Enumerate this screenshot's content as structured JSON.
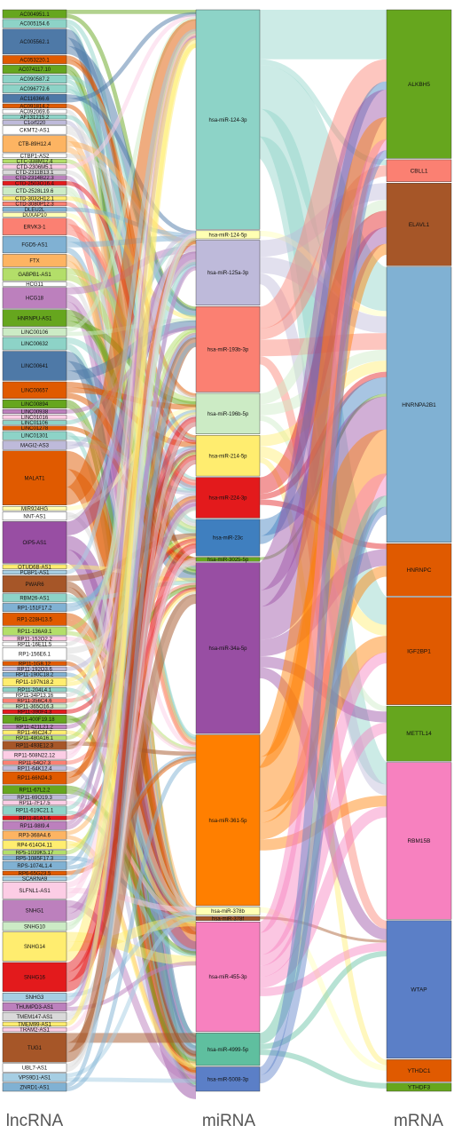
{
  "column_titles": {
    "lncrna": "lncRNA",
    "mirna": "miRNA",
    "mrna": "mRNA"
  },
  "lncrna_nodes": [
    {
      "label": "AC004951.1",
      "weight": 1,
      "color": "#66a61e"
    },
    {
      "label": "AC005154.6",
      "weight": 1,
      "color": "#8dd3c7"
    },
    {
      "label": "AC005562.1",
      "weight": 3,
      "color": "#4e79a7"
    },
    {
      "label": "AC053220.1",
      "weight": 1,
      "color": "#e05a00"
    },
    {
      "label": "AC074117.10",
      "weight": 1,
      "color": "#66a61e"
    },
    {
      "label": "AC090587.2",
      "weight": 1,
      "color": "#8dd3c7"
    },
    {
      "label": "AC096772.6",
      "weight": 1,
      "color": "#8dd3c7"
    },
    {
      "label": "AC116366.6",
      "weight": 1,
      "color": "#4e79a7"
    },
    {
      "label": "AC091814.2",
      "weight": 0.5,
      "color": "#e05a00"
    },
    {
      "label": "AC092069.6",
      "weight": 0.5,
      "color": "#ffffff"
    },
    {
      "label": "AF131215.2",
      "weight": 0.5,
      "color": "#8dd3c7"
    },
    {
      "label": "C1orf220",
      "weight": 0.5,
      "color": "#bebada"
    },
    {
      "label": "CKMT2-AS1",
      "weight": 1,
      "color": "#ffffff"
    },
    {
      "label": "CTB-89H12.4",
      "weight": 2,
      "color": "#fdb462"
    },
    {
      "label": "CTBP1-AS2",
      "weight": 0.5,
      "color": "#ffffff"
    },
    {
      "label": "CTC-338M12.4",
      "weight": 0.5,
      "color": "#b3de69"
    },
    {
      "label": "CTD-2306M5.1",
      "weight": 0.5,
      "color": "#fccde5"
    },
    {
      "label": "CTD-2311B13.1",
      "weight": 0.5,
      "color": "#d9d9d9"
    },
    {
      "label": "CTD-2314B22.3",
      "weight": 0.5,
      "color": "#bc80bd"
    },
    {
      "label": "CTD-2503O16.4",
      "weight": 0.5,
      "color": "#e31a1c"
    },
    {
      "label": "CTD-2528L19.6",
      "weight": 1,
      "color": "#ccebc5"
    },
    {
      "label": "CTD-3032H12.1",
      "weight": 0.5,
      "color": "#ffed6f"
    },
    {
      "label": "CTD-3080P12.3",
      "weight": 0.5,
      "color": "#fb8072"
    },
    {
      "label": "DLEU2L",
      "weight": 0.5,
      "color": "#80b1d3"
    },
    {
      "label": "DUXAP10",
      "weight": 0.5,
      "color": "#ffffb3"
    },
    {
      "label": "ERVK3-1",
      "weight": 2,
      "color": "#fb8072"
    },
    {
      "label": "FGD5-AS1",
      "weight": 2,
      "color": "#80b1d3"
    },
    {
      "label": "FTX",
      "weight": 1.5,
      "color": "#fdb462"
    },
    {
      "label": "GABPB1-AS1",
      "weight": 1.5,
      "color": "#b3de69"
    },
    {
      "label": "HCG11",
      "weight": 0.5,
      "color": "#ffffff"
    },
    {
      "label": "HCG18",
      "weight": 2.5,
      "color": "#bc80bd"
    },
    {
      "label": "HNRNPU-AS1",
      "weight": 2,
      "color": "#66a61e"
    },
    {
      "label": "LINC00106",
      "weight": 1,
      "color": "#ccebc5"
    },
    {
      "label": "LINC00632",
      "weight": 1.5,
      "color": "#8dd3c7"
    },
    {
      "label": "LINC00641",
      "weight": 3.5,
      "color": "#4e79a7"
    },
    {
      "label": "LINC00657",
      "weight": 2,
      "color": "#e05a00"
    },
    {
      "label": "LINC00894",
      "weight": 1,
      "color": "#66a61e"
    },
    {
      "label": "LINC00938",
      "weight": 0.5,
      "color": "#bc80bd"
    },
    {
      "label": "LINC01016",
      "weight": 0.5,
      "color": "#fccde5"
    },
    {
      "label": "LINC01106",
      "weight": 0.5,
      "color": "#8dd3c7"
    },
    {
      "label": "LINC01278",
      "weight": 0.5,
      "color": "#e05a00"
    },
    {
      "label": "LINC01301",
      "weight": 1,
      "color": "#8dd3c7"
    },
    {
      "label": "MAGI2-AS3",
      "weight": 1,
      "color": "#bebada"
    },
    {
      "label": "MALAT1",
      "weight": 6.5,
      "color": "#e05a00"
    },
    {
      "label": "MIR924HG",
      "weight": 0.5,
      "color": "#ffffb3"
    },
    {
      "label": "NNT-AS1",
      "weight": 1,
      "color": "#ffffff"
    },
    {
      "label": "OIP5-AS1",
      "weight": 5,
      "color": "#984ea3"
    },
    {
      "label": "OTUD6B-AS1",
      "weight": 0.5,
      "color": "#ffed6f"
    },
    {
      "label": "PCBP1-AS1",
      "weight": 0.5,
      "color": "#a6cee3"
    },
    {
      "label": "PWAR6",
      "weight": 2,
      "color": "#a65628"
    },
    {
      "label": "RBM26-AS1",
      "weight": 1,
      "color": "#8dd3c7"
    },
    {
      "label": "RP1-151F17.2",
      "weight": 1,
      "color": "#80b1d3"
    },
    {
      "label": "RP1-228H13.5",
      "weight": 1.5,
      "color": "#e05a00"
    },
    {
      "label": "RP11-136A9.1",
      "weight": 1,
      "color": "#b3de69"
    },
    {
      "label": "RP11-152O2.2",
      "weight": 0.5,
      "color": "#fccde5"
    },
    {
      "label": "RP11-16E11.5",
      "weight": 0.5,
      "color": "#ffffff"
    },
    {
      "label": "RP1-156E6.1",
      "weight": 1.5,
      "color": "#ffffff"
    },
    {
      "label": "RP11-1G8.12",
      "weight": 0.5,
      "color": "#e05a00"
    },
    {
      "label": "RP11-192O3.6",
      "weight": 0.5,
      "color": "#bebada"
    },
    {
      "label": "RP11-190C18.2",
      "weight": 0.5,
      "color": "#80b1d3"
    },
    {
      "label": "RP11-197N18.2",
      "weight": 1,
      "color": "#ffed6f"
    },
    {
      "label": "RP11-204L4.1",
      "weight": 0.5,
      "color": "#8dd3c7"
    },
    {
      "label": "RP11-34P13.16",
      "weight": 0.5,
      "color": "#ffffff"
    },
    {
      "label": "RP11-356C4.6",
      "weight": 0.5,
      "color": "#fb8072"
    },
    {
      "label": "RP11-365O16.3",
      "weight": 0.5,
      "color": "#ccebc5"
    },
    {
      "label": "RP11-390F4.3",
      "weight": 0.5,
      "color": "#e31a1c"
    },
    {
      "label": "RP11-400F19.18",
      "weight": 1,
      "color": "#66a61e"
    },
    {
      "label": "RP11-421L21.2",
      "weight": 0.5,
      "color": "#bc80bd"
    },
    {
      "label": "RP11-46C24.7",
      "weight": 0.5,
      "color": "#ffed6f"
    },
    {
      "label": "RP11-480A16.1",
      "weight": 0.5,
      "color": "#b3de69"
    },
    {
      "label": "RP11-493E12.3",
      "weight": 1,
      "color": "#a65628"
    },
    {
      "label": "RP11-508N22.12",
      "weight": 1,
      "color": "#fccde5"
    },
    {
      "label": "RP11-54O7.3",
      "weight": 0.5,
      "color": "#fb8072"
    },
    {
      "label": "RP11-64K12.4",
      "weight": 0.5,
      "color": "#bebada"
    },
    {
      "label": "RP11-66N24.3",
      "weight": 1.5,
      "color": "#e05a00"
    },
    {
      "label": "RP11-67L2.2",
      "weight": 1,
      "color": "#66a61e"
    },
    {
      "label": "RP11-69O19.3",
      "weight": 0.5,
      "color": "#bebada"
    },
    {
      "label": "RP11-7F17.5",
      "weight": 0.5,
      "color": "#fccde5"
    },
    {
      "label": "RP11-619C21.1",
      "weight": 1,
      "color": "#8dd3c7"
    },
    {
      "label": "RP11-81A1.6",
      "weight": 0.5,
      "color": "#e31a1c"
    },
    {
      "label": "RP11-98I9.4",
      "weight": 1,
      "color": "#bc80bd"
    },
    {
      "label": "RP3-368A4.6",
      "weight": 1,
      "color": "#fdb462"
    },
    {
      "label": "RP4-614O4.11",
      "weight": 1,
      "color": "#ffed6f"
    },
    {
      "label": "RP5-1039K5.17",
      "weight": 0.5,
      "color": "#b3de69"
    },
    {
      "label": "RP5-1085F17.3",
      "weight": 0.5,
      "color": "#80b1d3"
    },
    {
      "label": "RPS-1074L1.4",
      "weight": 1,
      "color": "#80b1d3"
    },
    {
      "label": "RP6-65G23.5",
      "weight": 0.5,
      "color": "#e05a00"
    },
    {
      "label": "SCARNA9",
      "weight": 0.5,
      "color": "#a6cee3"
    },
    {
      "label": "SLFNL1-AS1",
      "weight": 2,
      "color": "#fccde5"
    },
    {
      "label": "SNHG1",
      "weight": 2.5,
      "color": "#bc80bd"
    },
    {
      "label": "SNHG10",
      "weight": 1,
      "color": "#ccebc5"
    },
    {
      "label": "SNHG14",
      "weight": 3.5,
      "color": "#ffed6f"
    },
    {
      "label": "SNHG16",
      "weight": 3.5,
      "color": "#e31a1c"
    },
    {
      "label": "SNHG3",
      "weight": 1,
      "color": "#a6cee3"
    },
    {
      "label": "THUMPD3-AS1",
      "weight": 1,
      "color": "#bc80bd"
    },
    {
      "label": "TMEM147-AS1",
      "weight": 1,
      "color": "#d9d9d9"
    },
    {
      "label": "TMEM99-AS1",
      "weight": 0.5,
      "color": "#ffed6f"
    },
    {
      "label": "TRAM2-AS1",
      "weight": 0.5,
      "color": "#fccde5"
    },
    {
      "label": "TUG1",
      "weight": 3.5,
      "color": "#a65628"
    },
    {
      "label": "UBL7-AS1",
      "weight": 1,
      "color": "#ffffff"
    },
    {
      "label": "VPS9D1-AS1",
      "weight": 1,
      "color": "#a6cee3"
    },
    {
      "label": "ZNRD1-AS1",
      "weight": 1,
      "color": "#80b1d3"
    }
  ],
  "mirna_nodes": [
    {
      "label": "hsa-miR-124-3p",
      "weight": 27,
      "color": "#8dd3c7"
    },
    {
      "label": "hsa-miR-124-5p",
      "weight": 1,
      "color": "#ffffb3"
    },
    {
      "label": "hsa-miR-125a-3p",
      "weight": 8,
      "color": "#bebada"
    },
    {
      "label": "hsa-miR-193b-3p",
      "weight": 10.5,
      "color": "#fb8072"
    },
    {
      "label": "hsa-miR-196b-5p",
      "weight": 5,
      "color": "#ccebc5"
    },
    {
      "label": "hsa-miR-214-5p",
      "weight": 5,
      "color": "#ffed6f"
    },
    {
      "label": "hsa-miR-224-3p",
      "weight": 5,
      "color": "#e31a1c"
    },
    {
      "label": "hsa-miR-23c",
      "weight": 4.5,
      "color": "#3f7fbf"
    },
    {
      "label": "hsa-miR-3025-5p",
      "weight": 0.5,
      "color": "#66a61e"
    },
    {
      "label": "hsa-miR-34a-5p",
      "weight": 21,
      "color": "#984ea3"
    },
    {
      "label": "hsa-miR-361-5p",
      "weight": 21,
      "color": "#ff7f00"
    },
    {
      "label": "hsa-miR-378b",
      "weight": 1,
      "color": "#ffffb3"
    },
    {
      "label": "hsa-miR-378f",
      "weight": 0.5,
      "color": "#a65628"
    },
    {
      "label": "hsa-miR-455-3p",
      "weight": 13.5,
      "color": "#f781bf"
    },
    {
      "label": "hsa-miR-4999-5p",
      "weight": 4,
      "color": "#5fbf9f"
    },
    {
      "label": "hsa-miR-5008-3p",
      "weight": 3,
      "color": "#5b7fc7"
    }
  ],
  "mrna_nodes": [
    {
      "label": "ALKBH5",
      "weight": 27,
      "color": "#66a61e"
    },
    {
      "label": "CBLL1",
      "weight": 4,
      "color": "#fb8072"
    },
    {
      "label": "ELAVL1",
      "weight": 15,
      "color": "#a65628"
    },
    {
      "label": "HNRNPA2B1",
      "weight": 50,
      "color": "#80b1d3"
    },
    {
      "label": "HNRNPC",
      "weight": 9.5,
      "color": "#e05a00"
    },
    {
      "label": "IGF2BP1",
      "weight": 19.5,
      "color": "#e05a00"
    },
    {
      "label": "METTL14",
      "weight": 10,
      "color": "#66a61e"
    },
    {
      "label": "RBM15B",
      "weight": 28.5,
      "color": "#f781bf"
    },
    {
      "label": "WTAP",
      "weight": 25,
      "color": "#5b7fc7"
    },
    {
      "label": "YTHDC1",
      "weight": 4,
      "color": "#e05a00"
    },
    {
      "label": "YTHDF3",
      "weight": 1.5,
      "color": "#66a61e"
    }
  ],
  "mirna_mrna_links": [
    [
      0,
      0,
      9
    ],
    [
      0,
      1,
      1
    ],
    [
      0,
      3,
      8
    ],
    [
      0,
      5,
      5
    ],
    [
      0,
      7,
      4
    ],
    [
      1,
      3,
      1
    ],
    [
      2,
      2,
      3
    ],
    [
      2,
      3,
      3
    ],
    [
      2,
      7,
      2
    ],
    [
      3,
      0,
      4
    ],
    [
      3,
      1,
      2
    ],
    [
      3,
      3,
      3
    ],
    [
      3,
      8,
      1.5
    ],
    [
      4,
      2,
      2
    ],
    [
      4,
      3,
      2
    ],
    [
      4,
      6,
      1
    ],
    [
      5,
      3,
      2
    ],
    [
      5,
      5,
      2
    ],
    [
      5,
      9,
      1
    ],
    [
      6,
      2,
      3
    ],
    [
      6,
      3,
      1
    ],
    [
      6,
      4,
      1
    ],
    [
      7,
      3,
      3
    ],
    [
      7,
      0,
      1.5
    ],
    [
      8,
      3,
      0.5
    ],
    [
      9,
      0,
      5
    ],
    [
      9,
      2,
      3
    ],
    [
      9,
      3,
      6
    ],
    [
      9,
      4,
      3
    ],
    [
      9,
      6,
      2
    ],
    [
      9,
      8,
      2
    ],
    [
      10,
      0,
      4
    ],
    [
      10,
      2,
      2
    ],
    [
      10,
      3,
      8
    ],
    [
      10,
      4,
      2
    ],
    [
      10,
      5,
      3
    ],
    [
      10,
      7,
      2
    ],
    [
      11,
      9,
      1
    ],
    [
      12,
      8,
      0.5
    ],
    [
      13,
      0,
      2
    ],
    [
      13,
      3,
      4
    ],
    [
      13,
      5,
      2
    ],
    [
      13,
      6,
      2
    ],
    [
      13,
      7,
      2
    ],
    [
      13,
      8,
      1.5
    ],
    [
      14,
      3,
      2
    ],
    [
      14,
      8,
      1
    ],
    [
      14,
      10,
      1
    ],
    [
      15,
      0,
      1.5
    ],
    [
      15,
      3,
      1.5
    ]
  ]
}
